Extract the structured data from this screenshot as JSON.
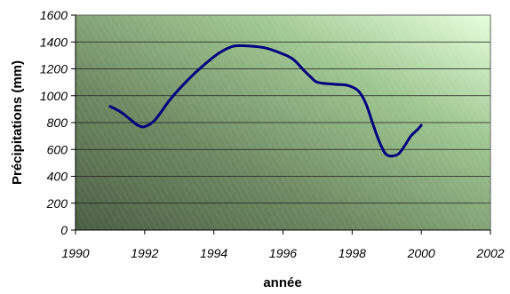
{
  "chart_data": {
    "type": "line",
    "title": "",
    "xlabel": "année",
    "ylabel": "Précipitations (mm)",
    "xlim": [
      1990,
      2002
    ],
    "ylim": [
      0,
      1600
    ],
    "x_ticks": [
      "1990",
      "1992",
      "1994",
      "1996",
      "1998",
      "2000",
      "2002"
    ],
    "y_ticks": [
      "0",
      "200",
      "400",
      "600",
      "800",
      "1000",
      "1200",
      "1400",
      "1600"
    ],
    "grid": "horizontal",
    "legend": "none",
    "series": [
      {
        "color": "#000080",
        "x": [
          1991.0,
          1991.3,
          1991.6,
          1991.8,
          1992.0,
          1992.3,
          1992.7,
          1993.0,
          1993.5,
          1994.0,
          1994.3,
          1994.6,
          1995.0,
          1995.5,
          1996.0,
          1996.3,
          1996.6,
          1996.8,
          1997.0,
          1997.5,
          1997.8,
          1998.0,
          1998.2,
          1998.4,
          1998.6,
          1998.8,
          1999.0,
          1999.3,
          1999.5,
          1999.7,
          1999.9,
          2000.0
        ],
        "y": [
          920,
          880,
          820,
          780,
          770,
          820,
          960,
          1050,
          1180,
          1290,
          1340,
          1370,
          1370,
          1355,
          1310,
          1270,
          1190,
          1140,
          1100,
          1085,
          1080,
          1065,
          1030,
          940,
          790,
          650,
          560,
          560,
          620,
          700,
          750,
          780
        ]
      }
    ]
  }
}
